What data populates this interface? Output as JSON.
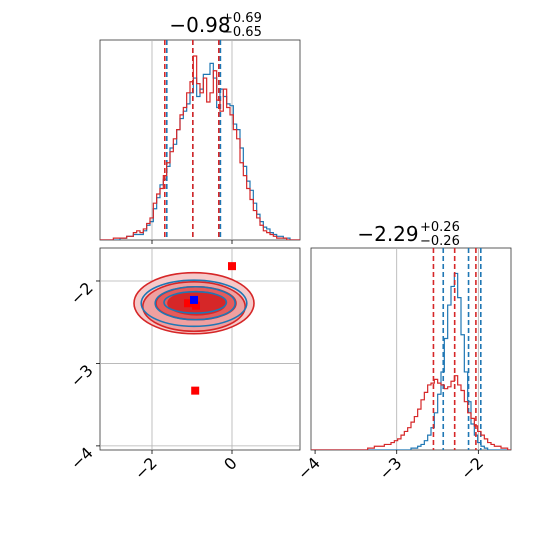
{
  "chart_data": {
    "type": "corner",
    "panels": [
      {
        "id": "hist-p1",
        "type": "step-histogram",
        "title": {
          "main": "−0.98",
          "sup": "+0.69",
          "sub": "−0.65"
        },
        "xlim": [
          -3.3,
          1.7
        ],
        "grid_x": [
          -2,
          0
        ],
        "series": [
          {
            "color": "#1f77b4",
            "median": -0.98,
            "q_lo": -1.63,
            "q_hi": -0.29,
            "values": [
              0,
              0,
              0,
              0,
              0,
              0,
              0.01,
              0.01,
              0.02,
              0.02,
              0.03,
              0.03,
              0.03,
              0.05,
              0.08,
              0.1,
              0.17,
              0.23,
              0.3,
              0.33,
              0.4,
              0.5,
              0.52,
              0.6,
              0.66,
              0.7,
              0.74,
              0.8,
              0.88,
              0.78,
              0.82,
              0.9,
              0.9,
              0.96,
              0.88,
              0.72,
              0.82,
              0.78,
              0.74,
              0.73,
              0.63,
              0.6,
              0.5,
              0.4,
              0.32,
              0.27,
              0.2,
              0.14,
              0.1,
              0.07,
              0.06,
              0.04,
              0.03,
              0.02,
              0.02,
              0.01,
              0.01,
              0,
              0,
              0
            ]
          },
          {
            "color": "#d62728",
            "median": -0.98,
            "q_lo": -1.68,
            "q_hi": -0.33,
            "values": [
              0,
              0,
              0,
              0,
              0.01,
              0.01,
              0.01,
              0.01,
              0.02,
              0.02,
              0.04,
              0.05,
              0.04,
              0.06,
              0.09,
              0.12,
              0.2,
              0.25,
              0.28,
              0.35,
              0.42,
              0.48,
              0.55,
              0.6,
              0.68,
              0.72,
              0.8,
              0.86,
              1.0,
              0.85,
              0.8,
              0.88,
              0.75,
              0.8,
              0.92,
              0.76,
              0.7,
              0.82,
              0.72,
              0.68,
              0.6,
              0.55,
              0.42,
              0.35,
              0.28,
              0.22,
              0.16,
              0.12,
              0.08,
              0.05,
              0.04,
              0.03,
              0.02,
              0.01,
              0.01,
              0.01,
              0,
              0,
              0,
              0
            ]
          }
        ]
      },
      {
        "id": "hist-p2",
        "type": "step-histogram",
        "title": {
          "main": "−2.29",
          "sup": "+0.26",
          "sub": "−0.26"
        },
        "xlim": [
          -4.05,
          -1.6
        ],
        "ticks": [
          {
            "value": -4,
            "label": "−4"
          },
          {
            "value": -3,
            "label": "−3"
          },
          {
            "value": -2,
            "label": "−2"
          }
        ],
        "grid_x": [
          -3,
          -2
        ],
        "series": [
          {
            "color": "#1f77b4",
            "median": -2.12,
            "q_lo": -2.43,
            "q_hi": -1.97,
            "values": [
              0,
              0,
              0,
              0,
              0,
              0,
              0,
              0,
              0,
              0,
              0,
              0,
              0,
              0,
              0,
              0,
              0,
              0,
              0,
              0,
              0,
              0,
              0,
              0,
              0,
              0,
              0,
              0,
              0,
              0,
              0.01,
              0.01,
              0.02,
              0.03,
              0.05,
              0.08,
              0.12,
              0.2,
              0.3,
              0.42,
              0.6,
              0.78,
              0.88,
              0.95,
              0.82,
              0.62,
              0.42,
              0.26,
              0.14,
              0.08,
              0.04,
              0.02,
              0.01,
              0,
              0,
              0,
              0,
              0,
              0,
              0
            ]
          },
          {
            "color": "#d62728",
            "median": -2.29,
            "q_lo": -2.55,
            "q_hi": -2.03,
            "values": [
              0,
              0,
              0,
              0,
              0,
              0,
              0,
              0,
              0,
              0,
              0,
              0,
              0,
              0,
              0,
              0,
              0,
              0.01,
              0.01,
              0.02,
              0.02,
              0.02,
              0.03,
              0.03,
              0.04,
              0.05,
              0.06,
              0.08,
              0.1,
              0.12,
              0.15,
              0.18,
              0.22,
              0.27,
              0.31,
              0.35,
              0.36,
              0.38,
              0.36,
              0.35,
              0.33,
              0.34,
              0.37,
              0.4,
              0.35,
              0.32,
              0.26,
              0.2,
              0.17,
              0.13,
              0.1,
              0.08,
              0.06,
              0.04,
              0.03,
              0.02,
              0.02,
              0.01,
              0.01,
              0
            ]
          }
        ]
      },
      {
        "id": "contour-p1-p2",
        "type": "2d-contour",
        "xlim": [
          -3.3,
          1.7
        ],
        "ylim": [
          -4.05,
          -1.6
        ],
        "x_ticks": [
          {
            "value": -2,
            "label": "−2"
          },
          {
            "value": 0,
            "label": "0"
          }
        ],
        "y_ticks": [
          {
            "value": -2,
            "label": "−2"
          },
          {
            "value": -3,
            "label": "−3"
          },
          {
            "value": -4,
            "label": "−4"
          }
        ],
        "grid_x": [
          -2,
          0
        ],
        "grid_y": [
          -2,
          -3,
          -4
        ],
        "red_contours": [
          {
            "cx": -0.95,
            "cy": -2.27,
            "rx": 1.5,
            "ry": 0.37,
            "fill": "#f6c9c9"
          },
          {
            "cx": -0.95,
            "cy": -2.31,
            "rx": 1.28,
            "ry": 0.3,
            "fill": "#efa0a0"
          },
          {
            "cx": -0.9,
            "cy": -2.27,
            "rx": 1.0,
            "ry": 0.2,
            "fill": "#e45c5c"
          },
          {
            "cx": -0.88,
            "cy": -2.27,
            "rx": 0.72,
            "ry": 0.14,
            "fill": "#d62728"
          }
        ],
        "blue_contours": [
          {
            "cx": -0.95,
            "cy": -2.27,
            "rx": 1.32,
            "ry": 0.28
          },
          {
            "cx": -0.92,
            "cy": -2.27,
            "rx": 1.0,
            "ry": 0.2
          },
          {
            "cx": -0.92,
            "cy": -2.26,
            "rx": 0.78,
            "ry": 0.13
          }
        ],
        "red_markers": [
          {
            "x": 0.0,
            "y": -1.82
          },
          {
            "x": -1.1,
            "y": -2.27
          },
          {
            "x": -0.9,
            "y": -2.3
          },
          {
            "x": -0.92,
            "y": -3.33
          }
        ],
        "blue_markers": [
          {
            "x": -0.95,
            "y": -2.23
          }
        ]
      }
    ]
  },
  "colors": {
    "blue": "#1f77b4",
    "red": "#d62728",
    "marker_blue": "#0000ff",
    "marker_red": "#ff0000",
    "grid": "#b0b0b0"
  }
}
